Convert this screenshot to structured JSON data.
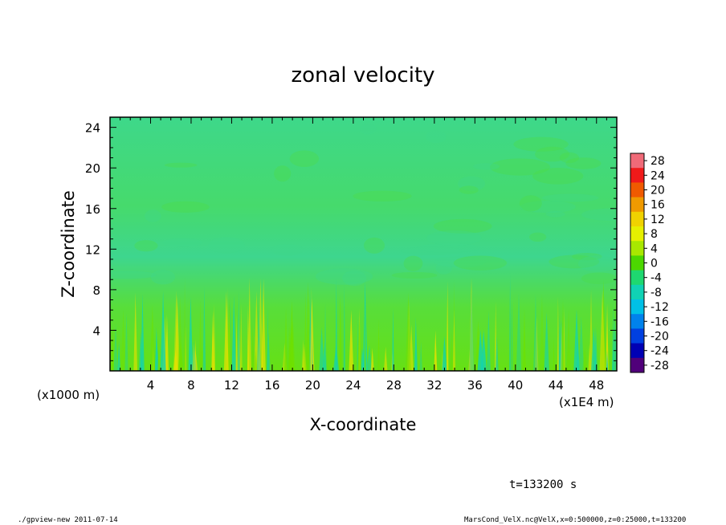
{
  "chart_data": {
    "type": "heatmap",
    "title": "zonal velocity",
    "xlabel": "X-coordinate",
    "ylabel": "Z-coordinate",
    "x_unit_left": "(x1000 m)",
    "x_unit_right": "(x1E4 m)",
    "x_ticks": [
      "4",
      "8",
      "12",
      "16",
      "20",
      "24",
      "28",
      "32",
      "36",
      "40",
      "44",
      "48"
    ],
    "y_ticks": [
      "4",
      "8",
      "12",
      "16",
      "20",
      "24"
    ],
    "xlim": [
      0,
      50
    ],
    "ylim": [
      0,
      25
    ],
    "colorbar": {
      "levels": [
        "28",
        "24",
        "20",
        "16",
        "12",
        "8",
        "4",
        "0",
        "-4",
        "-8",
        "-12",
        "-16",
        "-20",
        "-24",
        "-28"
      ],
      "colors": [
        "#f06a78",
        "#f01a1a",
        "#f05a00",
        "#f09a00",
        "#f0d200",
        "#e6f000",
        "#a8e800",
        "#4cd800",
        "#1ed870",
        "#10d2b4",
        "#00c0e6",
        "#0082ec",
        "#0040e0",
        "#0000b4",
        "#50007a"
      ]
    },
    "background_colors": {
      "upper": "#3ed88a",
      "mid": "#4cdc46",
      "lower": "#6ee000",
      "warm": "#f0e000",
      "cool": "#10d2b4"
    }
  },
  "time_label": "t=133200 s",
  "footer": {
    "left": "./gpview-new  2011-07-14",
    "right": "MarsCond_VelX.nc@VelX,x=0:500000,z=0:25000,t=133200"
  }
}
